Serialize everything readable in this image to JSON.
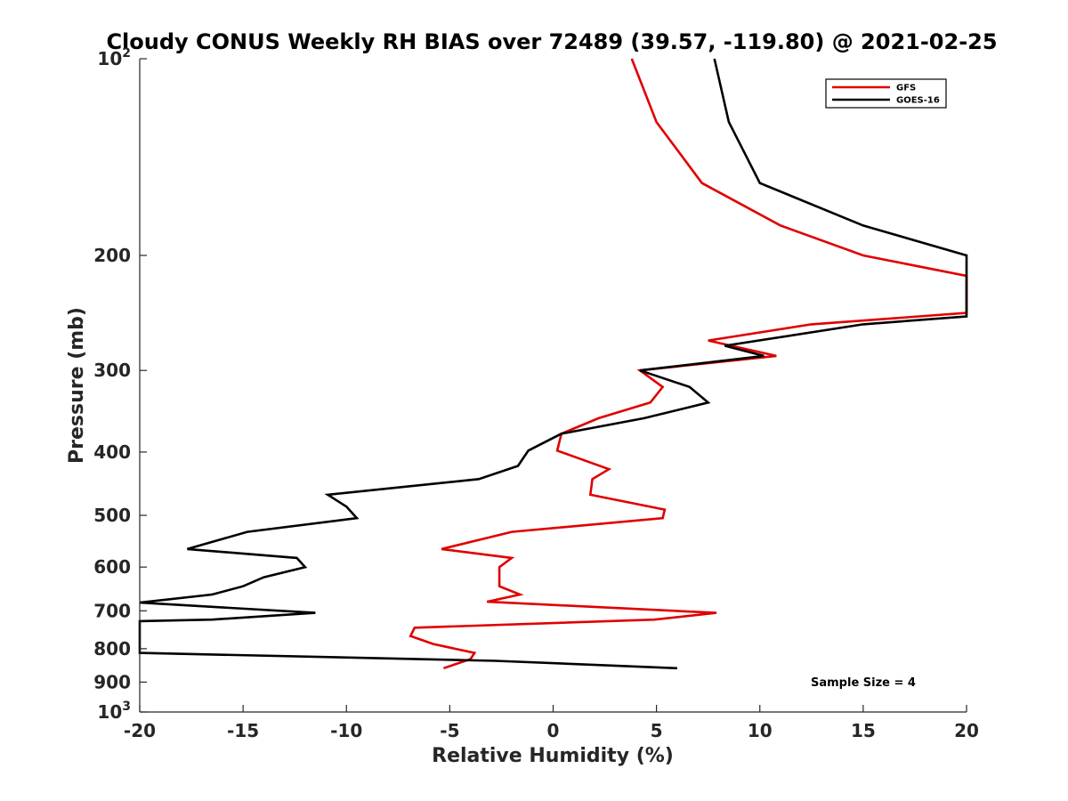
{
  "chart_data": {
    "type": "line",
    "title": "Cloudy CONUS Weekly RH BIAS over 72489 (39.57, -119.80) @ 2021-02-25",
    "xlabel": "Relative Humidity (%)",
    "ylabel": "Pressure (mb)",
    "xlim": [
      -20,
      20
    ],
    "ylim": [
      1000,
      100
    ],
    "y_scale": "log",
    "y_reversed": true,
    "x_ticks": [
      "-20",
      "-15",
      "-10",
      "-5",
      "0",
      "5",
      "10",
      "15",
      "20"
    ],
    "y_ticks": [
      {
        "value": 100,
        "base": "10",
        "exp": "2"
      },
      {
        "value": 200,
        "label": "200"
      },
      {
        "value": 300,
        "label": "300"
      },
      {
        "value": 400,
        "label": "400"
      },
      {
        "value": 500,
        "label": "500"
      },
      {
        "value": 600,
        "label": "600"
      },
      {
        "value": 700,
        "label": "700"
      },
      {
        "value": 800,
        "label": "800"
      },
      {
        "value": 900,
        "label": "900"
      },
      {
        "value": 1000,
        "base": "10",
        "exp": "3"
      }
    ],
    "grid": false,
    "legend_position": "top-right",
    "annotation": "Sample Size = 4",
    "series": [
      {
        "name": "GFS",
        "color": "#e00000",
        "points": [
          [
            3.8,
            100
          ],
          [
            5.0,
            125
          ],
          [
            7.2,
            155
          ],
          [
            11.0,
            180
          ],
          [
            15.0,
            200
          ],
          [
            20.0,
            215
          ],
          [
            20.0,
            245
          ],
          [
            12.5,
            255
          ],
          [
            7.5,
            270
          ],
          [
            10.8,
            285
          ],
          [
            4.2,
            300
          ],
          [
            5.3,
            318
          ],
          [
            4.7,
            336
          ],
          [
            2.2,
            355
          ],
          [
            0.4,
            375
          ],
          [
            0.2,
            398
          ],
          [
            2.7,
            425
          ],
          [
            1.9,
            440
          ],
          [
            1.8,
            465
          ],
          [
            5.4,
            490
          ],
          [
            5.3,
            505
          ],
          [
            -2.0,
            530
          ],
          [
            -5.4,
            563
          ],
          [
            -2.0,
            581
          ],
          [
            -2.6,
            600
          ],
          [
            -2.6,
            642
          ],
          [
            -1.6,
            661
          ],
          [
            -3.2,
            678
          ],
          [
            7.9,
            705
          ],
          [
            4.9,
            722
          ],
          [
            -6.7,
            743
          ],
          [
            -6.9,
            765
          ],
          [
            -5.8,
            787
          ],
          [
            -3.8,
            812
          ],
          [
            -4.0,
            830
          ],
          [
            -5.3,
            857
          ]
        ]
      },
      {
        "name": "GOES-16",
        "color": "#000000",
        "points": [
          [
            7.8,
            100
          ],
          [
            8.5,
            125
          ],
          [
            10.0,
            155
          ],
          [
            15.0,
            180
          ],
          [
            20.0,
            200
          ],
          [
            20.0,
            248
          ],
          [
            15.0,
            255
          ],
          [
            8.3,
            275
          ],
          [
            10.2,
            285
          ],
          [
            4.2,
            300
          ],
          [
            6.6,
            318
          ],
          [
            7.5,
            336
          ],
          [
            4.4,
            355
          ],
          [
            0.4,
            375
          ],
          [
            -1.2,
            398
          ],
          [
            -1.7,
            420
          ],
          [
            -3.6,
            440
          ],
          [
            -10.9,
            465
          ],
          [
            -10.0,
            485
          ],
          [
            -9.5,
            505
          ],
          [
            -14.8,
            530
          ],
          [
            -17.7,
            563
          ],
          [
            -12.4,
            581
          ],
          [
            -12.0,
            600
          ],
          [
            -14.0,
            622
          ],
          [
            -15.0,
            642
          ],
          [
            -16.5,
            661
          ],
          [
            -20.0,
            680
          ],
          [
            -11.5,
            705
          ],
          [
            -16.5,
            722
          ],
          [
            -20.0,
            726
          ],
          [
            -20.0,
            812
          ],
          [
            -2.8,
            835
          ],
          [
            6.0,
            857
          ]
        ]
      }
    ]
  }
}
